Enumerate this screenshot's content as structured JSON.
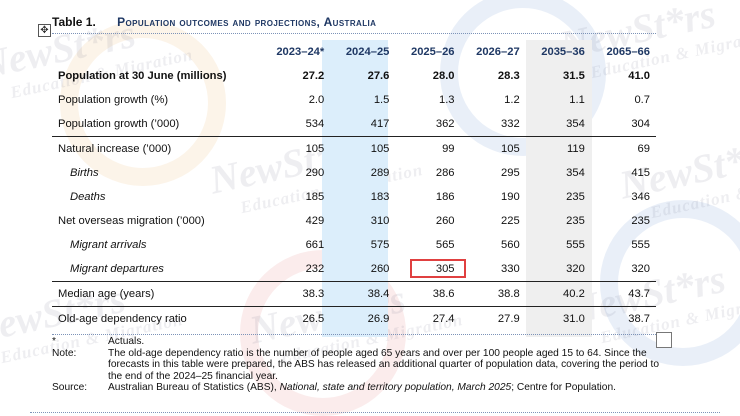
{
  "watermark": {
    "brand": "NewSt*rs",
    "tagline": "Education & Migration"
  },
  "table": {
    "label": "Table 1.",
    "title": "Population outcomes and projections, Australia",
    "columns": [
      "2023–24*",
      "2024–25",
      "2025–26",
      "2026–27",
      "2035–36",
      "2065–66"
    ],
    "rows": [
      {
        "label": "Population at 30 June (millions)",
        "values": [
          "27.2",
          "27.6",
          "28.0",
          "28.3",
          "31.5",
          "41.0"
        ]
      },
      {
        "label": "Population growth (%)",
        "values": [
          "2.0",
          "1.5",
          "1.3",
          "1.2",
          "1.1",
          "0.7"
        ]
      },
      {
        "label": "Population growth (’000)",
        "values": [
          "534",
          "417",
          "362",
          "332",
          "354",
          "304"
        ]
      },
      {
        "label": "Natural increase (’000)",
        "values": [
          "105",
          "105",
          "99",
          "105",
          "119",
          "69"
        ]
      },
      {
        "label": "Births",
        "values": [
          "290",
          "289",
          "286",
          "295",
          "354",
          "415"
        ]
      },
      {
        "label": "Deaths",
        "values": [
          "185",
          "183",
          "186",
          "190",
          "235",
          "346"
        ]
      },
      {
        "label": "Net overseas migration (’000)",
        "values": [
          "429",
          "310",
          "260",
          "225",
          "235",
          "235"
        ]
      },
      {
        "label": "Migrant arrivals",
        "values": [
          "661",
          "575",
          "565",
          "560",
          "555",
          "555"
        ]
      },
      {
        "label": "Migrant departures",
        "values": [
          "232",
          "260",
          "305",
          "330",
          "320",
          "320"
        ]
      },
      {
        "label": "Median age (years)",
        "values": [
          "38.3",
          "38.4",
          "38.6",
          "38.8",
          "40.2",
          "43.7"
        ]
      },
      {
        "label": "Old-age dependency ratio",
        "values": [
          "26.5",
          "26.9",
          "27.4",
          "27.9",
          "31.0",
          "38.7"
        ]
      }
    ]
  },
  "notes": {
    "asterisk_key": "*",
    "asterisk_text": "Actuals.",
    "note_key": "Note:",
    "note_text": "The old-age dependency ratio is the number of people aged 65 years and over per 100 people aged 15 to 64. Since the forecasts in this table were prepared, the ABS has released an additional quarter of population data, covering the period to the end of the 2024–25 financial year.",
    "source_key": "Source:",
    "source_pre": "Australian Bureau of Statistics (ABS), ",
    "source_title": "National, state and territory population, March 2025",
    "source_post": "; Centre for Population."
  }
}
